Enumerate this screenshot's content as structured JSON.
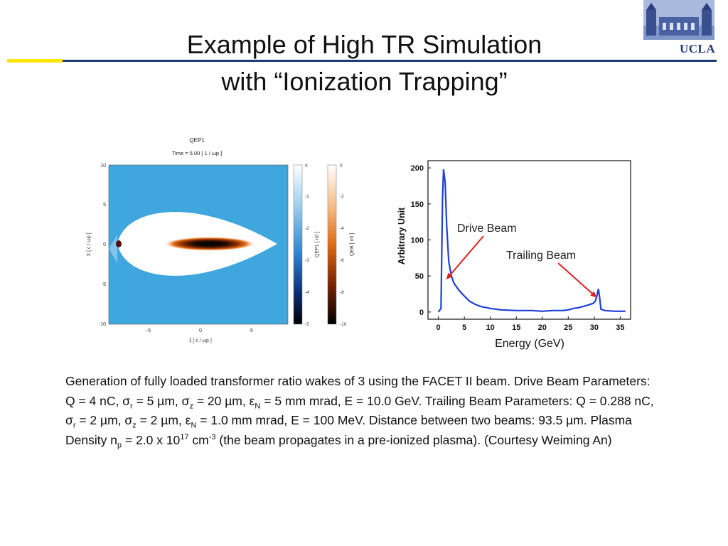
{
  "slide": {
    "title_line1": "Example of High TR Simulation",
    "title_line2": "with “Ionization Trapping”",
    "brand": "UCLA"
  },
  "simulation_figure": {
    "plot_title": "QEP1",
    "time_label": "Time =    5.00 [ 1 / ωp ]",
    "ylabel": "X [ c / ωp ]",
    "xlabel": "ξ [ c / ωp ]",
    "xticks": [
      "-5",
      "0",
      "5"
    ],
    "yticks": [
      "10",
      "5",
      "0",
      "-5",
      "-10"
    ],
    "colorbar1": {
      "label": "QEP1 [ n0 ]",
      "ticks": [
        "0",
        "-1",
        "-2",
        "-3",
        "-4",
        "-5"
      ]
    },
    "colorbar2": {
      "label": "QEB [ n0 ]",
      "ticks": [
        "0",
        "-2",
        "-4",
        "-6",
        "-8",
        "-10"
      ]
    }
  },
  "chart_data": {
    "type": "line",
    "xlabel": "Energy (GeV)",
    "ylabel": "Arbitrary Unit",
    "xlim": [
      -2,
      37
    ],
    "ylim": [
      -10,
      210
    ],
    "xticks": [
      0,
      5,
      10,
      15,
      20,
      25,
      30,
      35
    ],
    "yticks": [
      0,
      50,
      100,
      150,
      200
    ],
    "grid": false,
    "series": [
      {
        "color": "#1f3fd6",
        "x": [
          0,
          0.5,
          0.8,
          1.0,
          1.3,
          1.6,
          2.0,
          2.5,
          3,
          4,
          5,
          6,
          7,
          8,
          10,
          12,
          15,
          18,
          20,
          22,
          24,
          25,
          26,
          27,
          28,
          29,
          29.8,
          30.2,
          30.5,
          30.8,
          31.0,
          31.3,
          32,
          34,
          36
        ],
        "y": [
          0,
          5,
          160,
          198,
          180,
          120,
          70,
          50,
          40,
          30,
          22,
          15,
          11,
          8,
          5,
          3,
          2,
          2,
          1,
          2,
          2,
          3,
          5,
          6,
          8,
          10,
          12,
          15,
          22,
          32,
          22,
          4,
          2,
          1,
          1
        ]
      }
    ],
    "annotations": [
      {
        "text": "Drive Beam",
        "arrow_to": [
          1.5,
          45
        ]
      },
      {
        "text": "Trailing Beam",
        "arrow_to": [
          30.5,
          20
        ]
      }
    ]
  },
  "caption": {
    "p1": "Generation of fully loaded transformer ratio wakes of 3 using the FACET II beam. Drive Beam Parameters: Q = 4 nC, σ",
    "s1": "r",
    "p2": " = 5 µm, σ",
    "s2": "z",
    "p3": " = 20 µm, ε",
    "s3": "N",
    "p4": " = 5 mm mrad, E = 10.0 GeV. Trailing Beam Parameters: Q = 0.288 nC, σ",
    "s4": "r",
    "p5": " = 2 µm, σ",
    "s5": "z",
    "p6": " = 2 µm, ε",
    "s6": "N",
    "p7": " = 1.0 mm mrad, E = 100 MeV. Distance between two beams: 93.5 µm. Plasma Density n",
    "s7": "p",
    "p8": " = 2.0 x 10",
    "e8": "17",
    "p9": " cm",
    "e9": "-3",
    "p10": " (the beam propagates in a pre-ionized plasma). (Courtesy Weiming An)"
  }
}
